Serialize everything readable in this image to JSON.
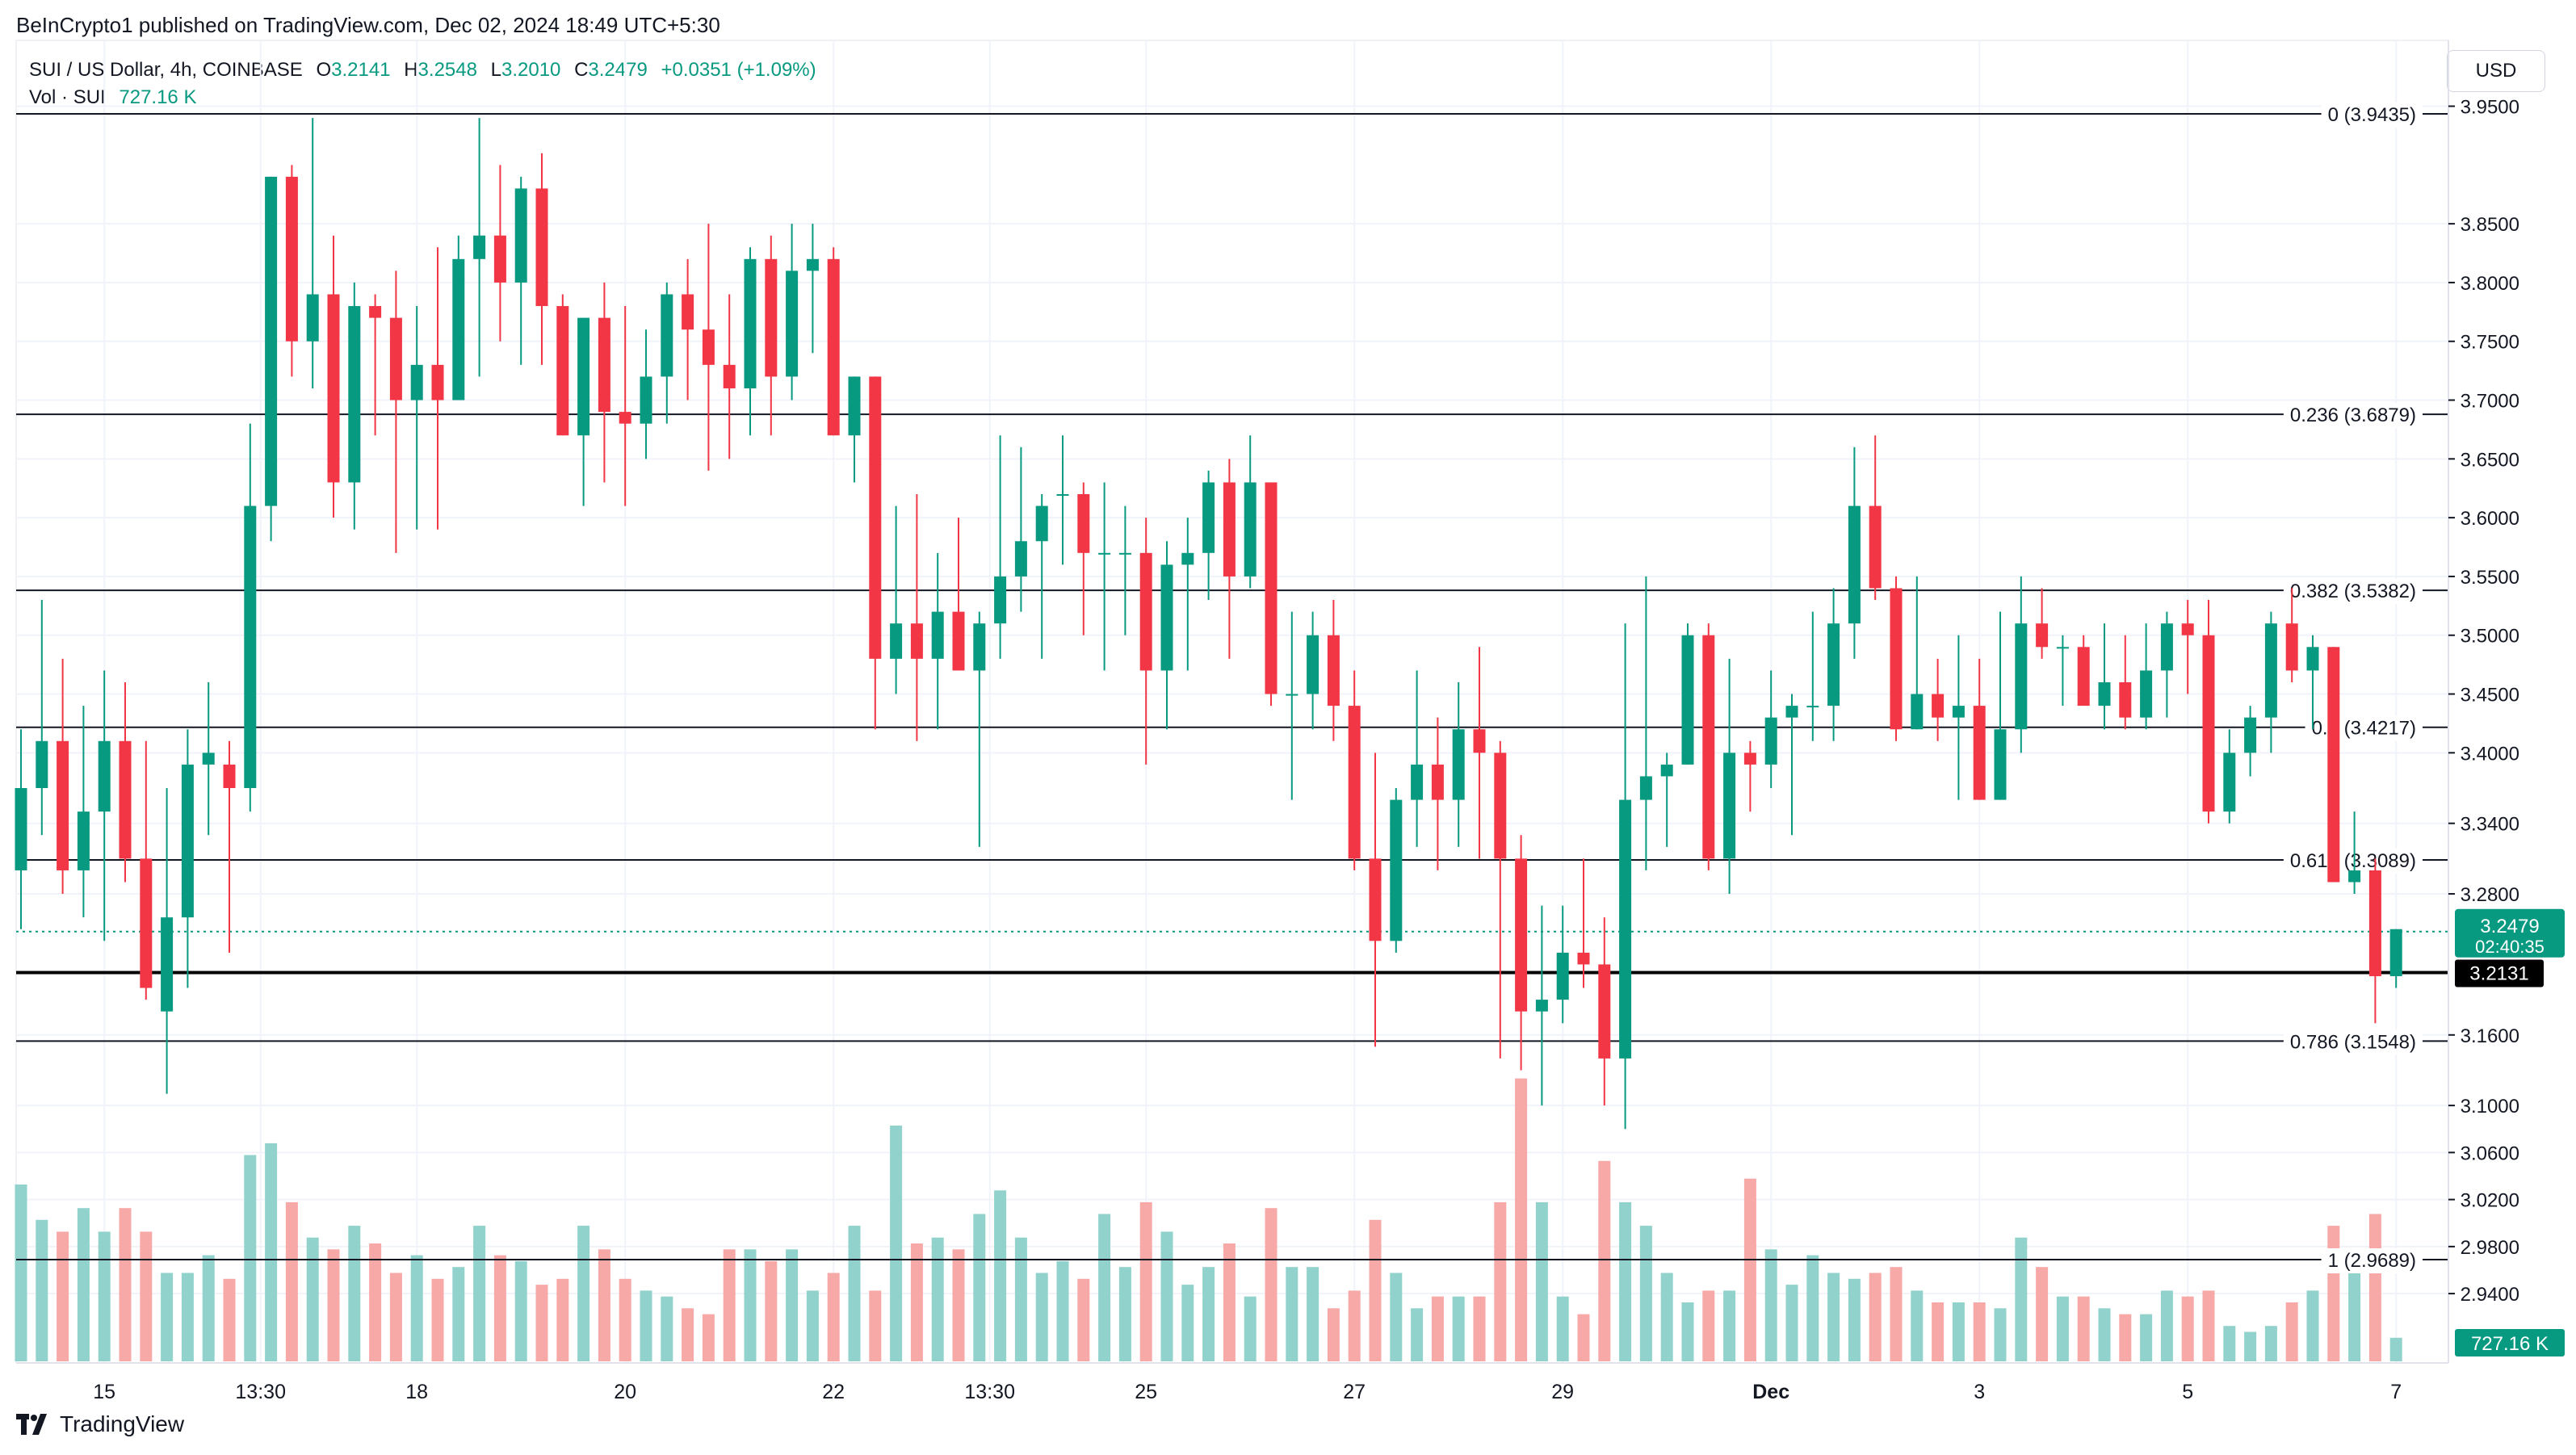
{
  "attribution": "BeInCrypto1 published on TradingView.com, Dec 02, 2024 18:49 UTC+5:30",
  "legend": {
    "symbol": "SUI / US Dollar, 4h, COINBASE",
    "o_key": "O",
    "o_val": "3.2141",
    "h_key": "H",
    "h_val": "3.2548",
    "l_key": "L",
    "l_val": "3.2010",
    "c_key": "C",
    "c_val": "3.2479",
    "change": "+0.0351 (+1.09%)",
    "vol_label": "Vol · SUI",
    "vol_val": "727.16 K"
  },
  "currency_button": "USD",
  "brand": "TradingView",
  "colors": {
    "up": "#089981",
    "down": "#f23645",
    "vol_up": "#92d2cc",
    "vol_down": "#f7a9a7",
    "grid": "#f0f3fa",
    "fib_line": "#131722"
  },
  "chart_data": {
    "type": "candlestick",
    "timeframe": "4h",
    "ylim": [
      2.881,
      4.006
    ],
    "y_ticks": [
      "3.9500",
      "3.8500",
      "3.8000",
      "3.7500",
      "3.7000",
      "3.6500",
      "3.6000",
      "3.5500",
      "3.5000",
      "3.4500",
      "3.4000",
      "3.3400",
      "3.2800",
      "3.1600",
      "3.1000",
      "3.0600",
      "3.0200",
      "2.9800",
      "2.9400"
    ],
    "x_tick_labels": [
      "15",
      "13:30",
      "18",
      "20",
      "22",
      "13:30",
      "25",
      "27",
      "29",
      "Dec",
      "3",
      "5",
      "7"
    ],
    "x_tick_index": [
      4,
      11.5,
      19,
      29,
      39,
      46.5,
      54,
      64,
      74,
      84,
      94,
      104,
      114
    ],
    "fib_levels": [
      {
        "label": "0 (3.9435)",
        "value": 3.9435
      },
      {
        "label": "0.236 (3.6879)",
        "value": 3.6879
      },
      {
        "label": "0.382 (3.5382)",
        "value": 3.5382
      },
      {
        "label": "0.5 (3.4217)",
        "value": 3.4217
      },
      {
        "label": "0.618 (3.3089)",
        "value": 3.3089
      },
      {
        "label": "0.786 (3.1548)",
        "value": 3.1548
      },
      {
        "label": "1 (2.9689)",
        "value": 2.9689
      }
    ],
    "support_line": {
      "value": 3.2131,
      "label": "3.2131"
    },
    "last_price": {
      "value": 3.2479,
      "label": "3.2479",
      "countdown": "02:40:35"
    },
    "volume_label": "727.16 K",
    "candles": [
      [
        3.3,
        3.42,
        3.25,
        3.37,
        150
      ],
      [
        3.37,
        3.53,
        3.33,
        3.41,
        120
      ],
      [
        3.41,
        3.48,
        3.28,
        3.3,
        110
      ],
      [
        3.3,
        3.44,
        3.26,
        3.35,
        130
      ],
      [
        3.35,
        3.47,
        3.24,
        3.41,
        110
      ],
      [
        3.41,
        3.46,
        3.29,
        3.31,
        130
      ],
      [
        3.31,
        3.41,
        3.19,
        3.2,
        110
      ],
      [
        3.18,
        3.37,
        3.11,
        3.26,
        75
      ],
      [
        3.26,
        3.42,
        3.2,
        3.39,
        75
      ],
      [
        3.39,
        3.46,
        3.33,
        3.4,
        90
      ],
      [
        3.39,
        3.41,
        3.23,
        3.37,
        70
      ],
      [
        3.37,
        3.68,
        3.35,
        3.61,
        175
      ],
      [
        3.61,
        3.89,
        3.58,
        3.89,
        185
      ],
      [
        3.89,
        3.9,
        3.72,
        3.75,
        135
      ],
      [
        3.75,
        3.94,
        3.71,
        3.79,
        105
      ],
      [
        3.79,
        3.84,
        3.6,
        3.63,
        95
      ],
      [
        3.63,
        3.8,
        3.59,
        3.78,
        115
      ],
      [
        3.78,
        3.79,
        3.67,
        3.77,
        100
      ],
      [
        3.77,
        3.81,
        3.57,
        3.7,
        75
      ],
      [
        3.7,
        3.78,
        3.59,
        3.73,
        90
      ],
      [
        3.73,
        3.83,
        3.59,
        3.7,
        70
      ],
      [
        3.7,
        3.84,
        3.7,
        3.82,
        80
      ],
      [
        3.82,
        3.94,
        3.72,
        3.84,
        115
      ],
      [
        3.84,
        3.9,
        3.75,
        3.8,
        90
      ],
      [
        3.8,
        3.89,
        3.73,
        3.88,
        85
      ],
      [
        3.88,
        3.91,
        3.73,
        3.78,
        65
      ],
      [
        3.78,
        3.79,
        3.67,
        3.67,
        70
      ],
      [
        3.67,
        3.77,
        3.61,
        3.77,
        115
      ],
      [
        3.77,
        3.8,
        3.63,
        3.69,
        95
      ],
      [
        3.69,
        3.78,
        3.61,
        3.68,
        70
      ],
      [
        3.68,
        3.76,
        3.65,
        3.72,
        60
      ],
      [
        3.72,
        3.8,
        3.68,
        3.79,
        55
      ],
      [
        3.79,
        3.82,
        3.7,
        3.76,
        45
      ],
      [
        3.76,
        3.85,
        3.64,
        3.73,
        40
      ],
      [
        3.73,
        3.79,
        3.65,
        3.71,
        95
      ],
      [
        3.71,
        3.83,
        3.67,
        3.82,
        95
      ],
      [
        3.82,
        3.84,
        3.67,
        3.72,
        85
      ],
      [
        3.72,
        3.85,
        3.7,
        3.81,
        95
      ],
      [
        3.81,
        3.85,
        3.74,
        3.82,
        60
      ],
      [
        3.82,
        3.83,
        3.67,
        3.67,
        75
      ],
      [
        3.67,
        3.72,
        3.63,
        3.72,
        115
      ],
      [
        3.72,
        3.72,
        3.42,
        3.48,
        60
      ],
      [
        3.48,
        3.61,
        3.45,
        3.51,
        200
      ],
      [
        3.51,
        3.62,
        3.41,
        3.48,
        100
      ],
      [
        3.48,
        3.57,
        3.42,
        3.52,
        105
      ],
      [
        3.52,
        3.6,
        3.47,
        3.47,
        95
      ],
      [
        3.47,
        3.52,
        3.32,
        3.51,
        125
      ],
      [
        3.51,
        3.67,
        3.48,
        3.55,
        145
      ],
      [
        3.55,
        3.66,
        3.52,
        3.58,
        105
      ],
      [
        3.58,
        3.62,
        3.48,
        3.61,
        75
      ],
      [
        3.62,
        3.67,
        3.56,
        3.62,
        85
      ],
      [
        3.62,
        3.63,
        3.5,
        3.57,
        70
      ],
      [
        3.57,
        3.63,
        3.47,
        3.57,
        125
      ],
      [
        3.57,
        3.61,
        3.5,
        3.57,
        80
      ],
      [
        3.57,
        3.6,
        3.39,
        3.47,
        135
      ],
      [
        3.47,
        3.58,
        3.42,
        3.56,
        110
      ],
      [
        3.56,
        3.6,
        3.47,
        3.57,
        65
      ],
      [
        3.57,
        3.64,
        3.53,
        3.63,
        80
      ],
      [
        3.63,
        3.65,
        3.48,
        3.55,
        100
      ],
      [
        3.55,
        3.67,
        3.54,
        3.63,
        55
      ],
      [
        3.63,
        3.63,
        3.44,
        3.45,
        130
      ],
      [
        3.45,
        3.52,
        3.36,
        3.45,
        80
      ],
      [
        3.45,
        3.52,
        3.42,
        3.5,
        80
      ],
      [
        3.5,
        3.53,
        3.41,
        3.44,
        45
      ],
      [
        3.44,
        3.47,
        3.3,
        3.31,
        60
      ],
      [
        3.31,
        3.4,
        3.15,
        3.24,
        120
      ],
      [
        3.24,
        3.37,
        3.23,
        3.36,
        75
      ],
      [
        3.36,
        3.47,
        3.32,
        3.39,
        45
      ],
      [
        3.39,
        3.43,
        3.3,
        3.36,
        55
      ],
      [
        3.36,
        3.46,
        3.32,
        3.42,
        55
      ],
      [
        3.42,
        3.49,
        3.31,
        3.4,
        55
      ],
      [
        3.4,
        3.41,
        3.14,
        3.31,
        135
      ],
      [
        3.31,
        3.33,
        3.13,
        3.18,
        240
      ],
      [
        3.18,
        3.27,
        3.1,
        3.19,
        135
      ],
      [
        3.19,
        3.27,
        3.17,
        3.23,
        55
      ],
      [
        3.23,
        3.31,
        3.2,
        3.22,
        40
      ],
      [
        3.22,
        3.26,
        3.1,
        3.14,
        170
      ],
      [
        3.14,
        3.51,
        3.08,
        3.36,
        135
      ],
      [
        3.36,
        3.55,
        3.3,
        3.38,
        115
      ],
      [
        3.38,
        3.4,
        3.32,
        3.39,
        75
      ],
      [
        3.39,
        3.51,
        3.39,
        3.5,
        50
      ],
      [
        3.5,
        3.51,
        3.3,
        3.31,
        60
      ],
      [
        3.31,
        3.48,
        3.28,
        3.4,
        60
      ],
      [
        3.4,
        3.41,
        3.35,
        3.39,
        155
      ],
      [
        3.39,
        3.47,
        3.37,
        3.43,
        95
      ],
      [
        3.43,
        3.45,
        3.33,
        3.44,
        65
      ],
      [
        3.44,
        3.52,
        3.41,
        3.44,
        90
      ],
      [
        3.44,
        3.54,
        3.41,
        3.51,
        75
      ],
      [
        3.51,
        3.66,
        3.48,
        3.61,
        70
      ],
      [
        3.61,
        3.67,
        3.53,
        3.54,
        75
      ],
      [
        3.54,
        3.55,
        3.41,
        3.42,
        80
      ],
      [
        3.42,
        3.55,
        3.42,
        3.45,
        60
      ],
      [
        3.45,
        3.48,
        3.41,
        3.43,
        50
      ],
      [
        3.43,
        3.5,
        3.36,
        3.44,
        50
      ],
      [
        3.44,
        3.48,
        3.36,
        3.36,
        50
      ],
      [
        3.36,
        3.52,
        3.36,
        3.42,
        45
      ],
      [
        3.42,
        3.55,
        3.4,
        3.51,
        105
      ],
      [
        3.51,
        3.54,
        3.48,
        3.49,
        80
      ],
      [
        3.49,
        3.5,
        3.44,
        3.49,
        55
      ],
      [
        3.49,
        3.5,
        3.45,
        3.44,
        55
      ],
      [
        3.44,
        3.51,
        3.42,
        3.46,
        45
      ],
      [
        3.46,
        3.5,
        3.42,
        3.43,
        40
      ],
      [
        3.43,
        3.51,
        3.42,
        3.47,
        40
      ],
      [
        3.47,
        3.52,
        3.43,
        3.51,
        60
      ],
      [
        3.51,
        3.53,
        3.45,
        3.5,
        55
      ],
      [
        3.5,
        3.53,
        3.34,
        3.35,
        60
      ],
      [
        3.35,
        3.42,
        3.34,
        3.4,
        30
      ],
      [
        3.4,
        3.44,
        3.38,
        3.43,
        25
      ],
      [
        3.43,
        3.52,
        3.4,
        3.51,
        30
      ],
      [
        3.51,
        3.54,
        3.46,
        3.47,
        50
      ],
      [
        3.47,
        3.5,
        3.42,
        3.49,
        60
      ],
      [
        3.49,
        3.49,
        3.29,
        3.29,
        115
      ],
      [
        3.29,
        3.35,
        3.28,
        3.3,
        80
      ],
      [
        3.3,
        3.31,
        3.17,
        3.21,
        125
      ],
      [
        3.21,
        3.25,
        3.2,
        3.25,
        20
      ]
    ]
  }
}
